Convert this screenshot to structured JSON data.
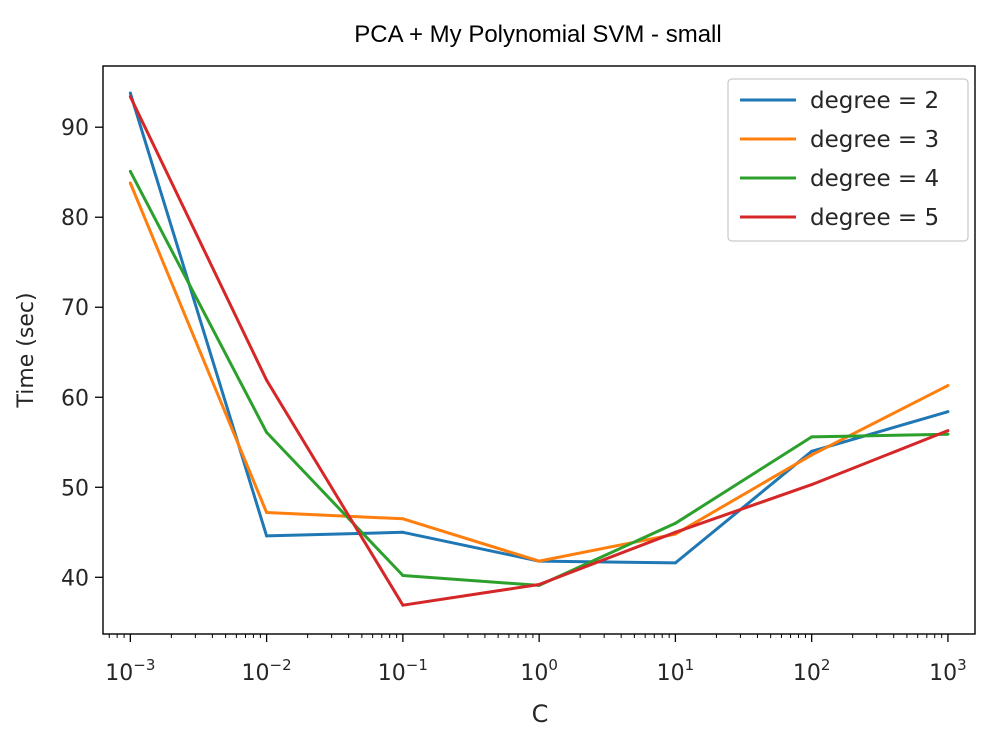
{
  "chart_data": {
    "type": "line",
    "title": "PCA + My Polynomial SVM - small",
    "xlabel": "C",
    "ylabel": "Time (sec)",
    "xscale": "log",
    "x": [
      0.001,
      0.01,
      0.1,
      1,
      10,
      100,
      1000
    ],
    "x_tick_labels": [
      {
        "base": "10",
        "exp": "−3"
      },
      {
        "base": "10",
        "exp": "−2"
      },
      {
        "base": "10",
        "exp": "−1"
      },
      {
        "base": "10",
        "exp": "0"
      },
      {
        "base": "10",
        "exp": "1"
      },
      {
        "base": "10",
        "exp": "2"
      },
      {
        "base": "10",
        "exp": "3"
      }
    ],
    "y_ticks": [
      40,
      50,
      60,
      70,
      80,
      90
    ],
    "xlim": [
      0.00063,
      1580
    ],
    "ylim": [
      33.7,
      96.8
    ],
    "grid": false,
    "legend_position": "top-right",
    "series": [
      {
        "name": "degree = 2",
        "color": "#1f77b4",
        "values": [
          93.8,
          44.6,
          45.0,
          41.8,
          41.6,
          54.0,
          58.4
        ]
      },
      {
        "name": "degree = 3",
        "color": "#ff7f0e",
        "values": [
          83.8,
          47.2,
          46.5,
          41.8,
          44.8,
          53.6,
          61.3
        ]
      },
      {
        "name": "degree = 4",
        "color": "#2ca02c",
        "values": [
          85.1,
          56.1,
          40.2,
          39.1,
          46.0,
          55.6,
          55.9
        ]
      },
      {
        "name": "degree = 5",
        "color": "#d62728",
        "values": [
          93.4,
          61.9,
          36.9,
          39.2,
          45.0,
          50.3,
          56.3
        ]
      }
    ]
  }
}
